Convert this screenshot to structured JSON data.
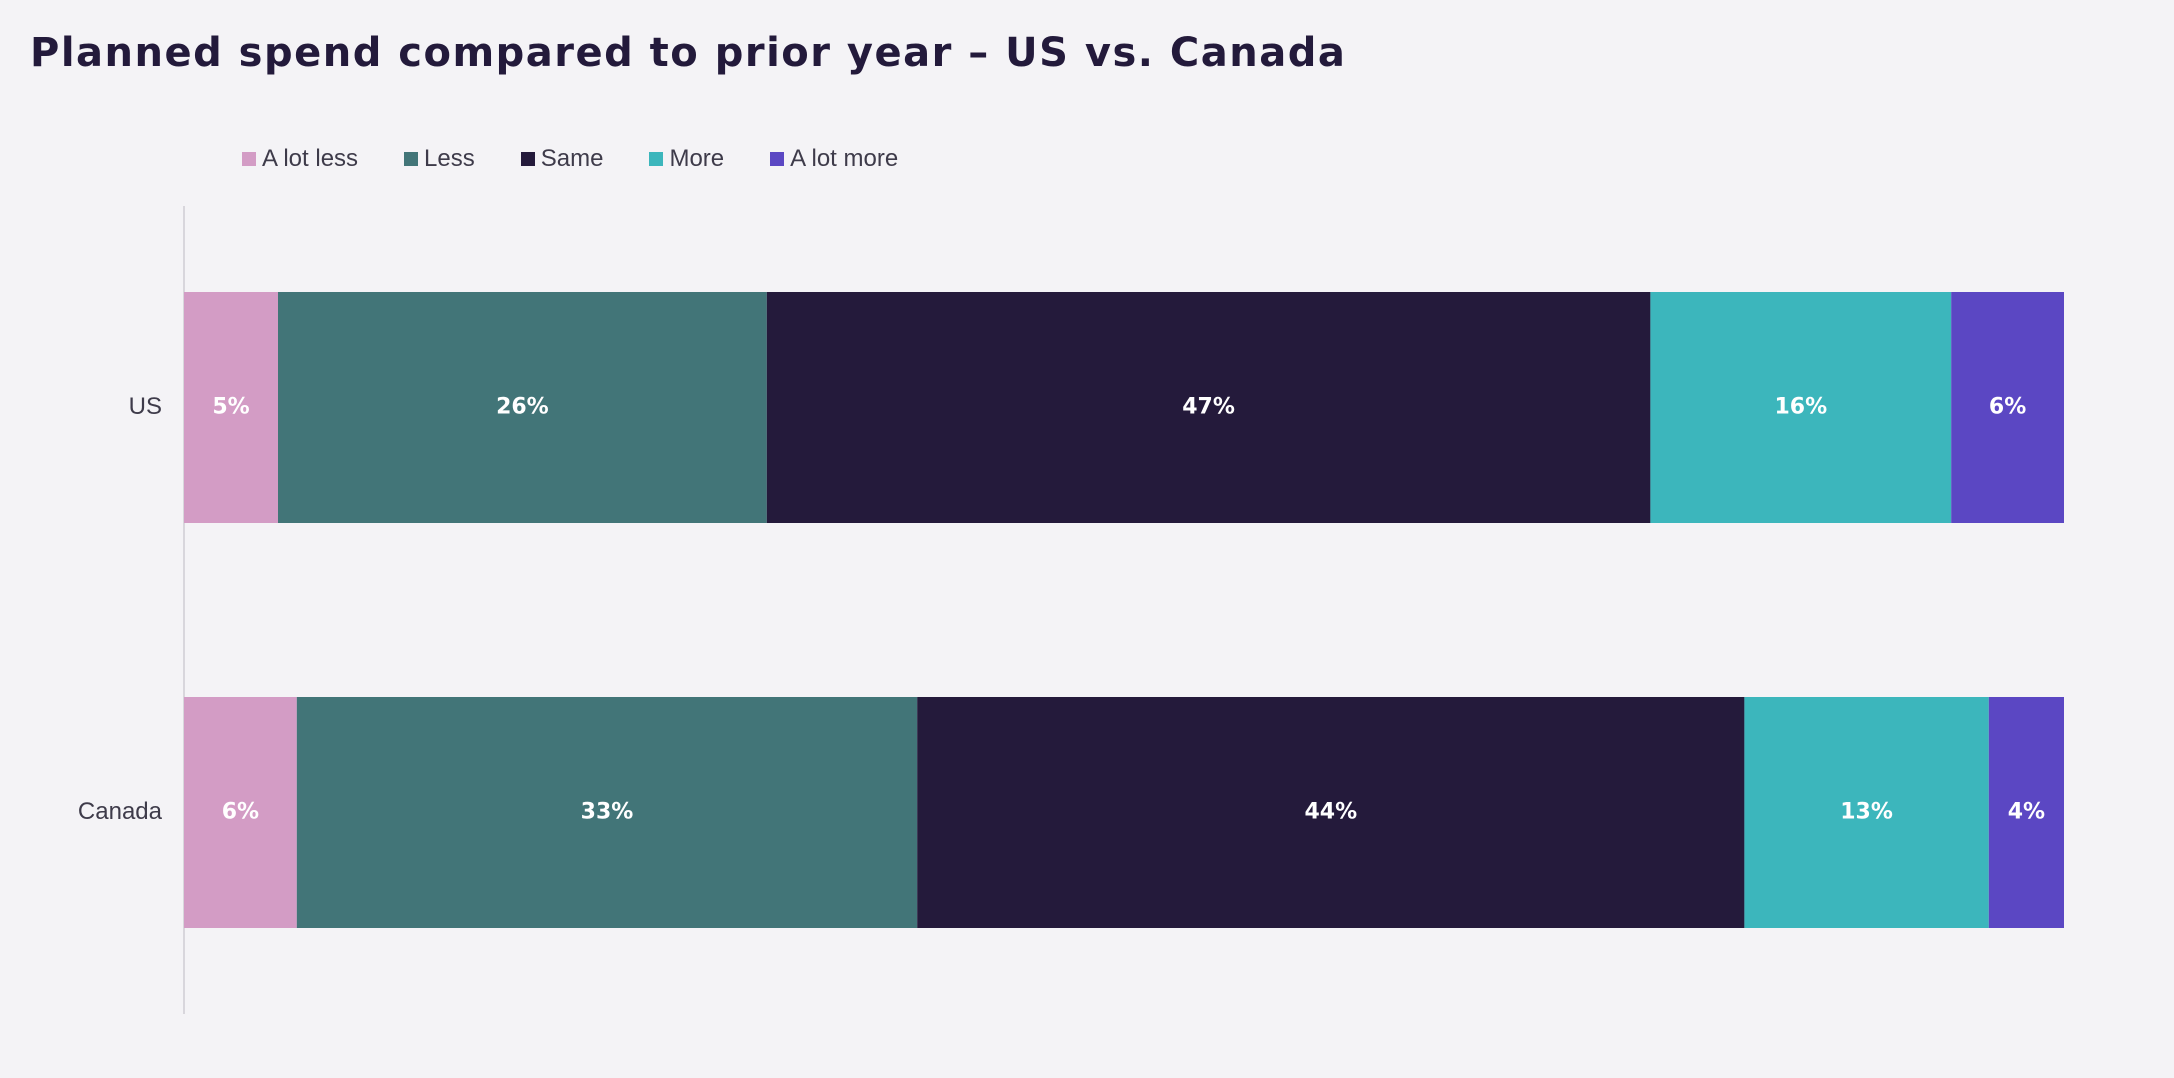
{
  "title": "Planned spend compared to prior year – US vs. Canada",
  "chart_data": {
    "type": "bar",
    "orientation": "horizontal",
    "stacked": true,
    "categories": [
      "US",
      "Canada"
    ],
    "series": [
      {
        "name": "A lot less",
        "color": "#d39cc5",
        "values": [
          5,
          6
        ],
        "labels": [
          "5%",
          "6%"
        ]
      },
      {
        "name": "Less",
        "color": "#427578",
        "values": [
          26,
          33
        ],
        "labels": [
          "26%",
          "33%"
        ]
      },
      {
        "name": "Same",
        "color": "#241a3b",
        "values": [
          47,
          44
        ],
        "labels": [
          "47%",
          "44%"
        ]
      },
      {
        "name": "More",
        "color": "#3cb6bc",
        "values": [
          16,
          13
        ],
        "labels": [
          "16%",
          "13%"
        ]
      },
      {
        "name": "A lot more",
        "color": "#5b47c3",
        "values": [
          6,
          4
        ],
        "labels": [
          "6%",
          "4%"
        ]
      }
    ],
    "xlim": [
      0,
      100
    ],
    "grid": false,
    "legend_position": "top-left"
  }
}
